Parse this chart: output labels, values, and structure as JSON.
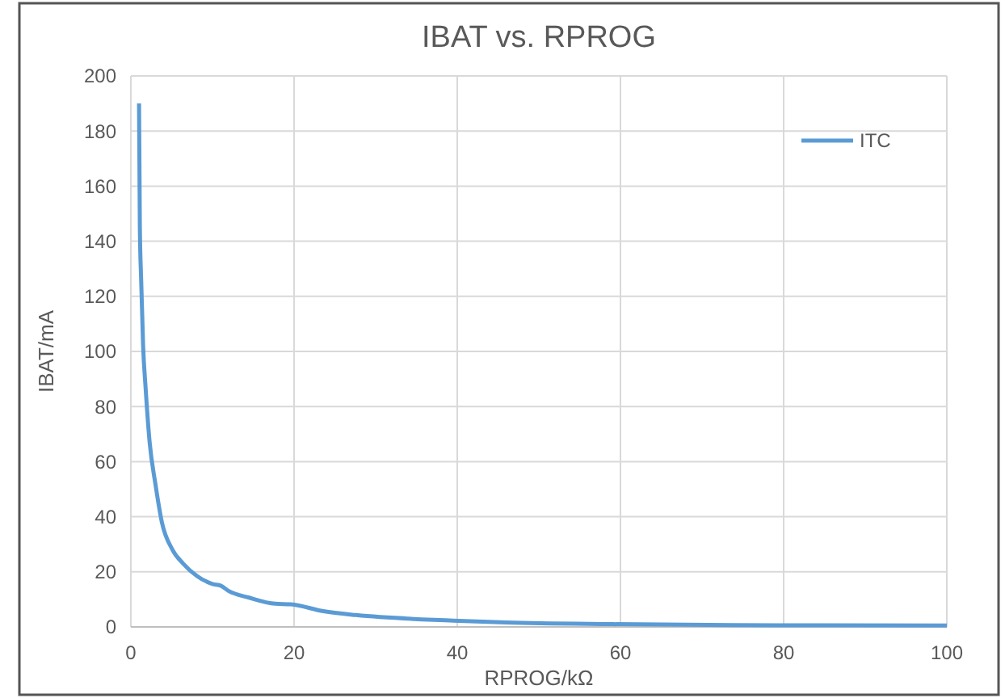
{
  "chart_data": {
    "type": "line",
    "title": "IBAT vs. RPROG",
    "xlabel": "RPROG/kΩ",
    "ylabel": "IBAT/mA",
    "x": [
      1,
      1.1,
      1.26,
      1.5,
      1.8,
      2.3,
      3,
      3.8,
      5.1,
      6.4,
      8.1,
      10,
      11,
      12,
      14.4,
      17.7,
      19.6,
      23.6,
      27.6,
      39.5,
      46,
      59,
      79,
      100
    ],
    "series": [
      {
        "name": "ITC",
        "color": "#5b9bd5",
        "values": [
          190,
          145,
          126,
          102,
          87,
          67,
          52,
          38,
          28,
          23,
          18.5,
          15.6,
          15,
          13,
          10.7,
          8.4,
          8.2,
          5.7,
          4.3,
          2.3,
          1.6,
          1.0,
          0.6,
          0.5
        ]
      }
    ],
    "xlim": [
      0,
      100
    ],
    "xticks": [
      0,
      20,
      40,
      60,
      80,
      100
    ],
    "ylim": [
      0,
      200
    ],
    "yticks": [
      0,
      20,
      40,
      60,
      80,
      100,
      120,
      140,
      160,
      180,
      200
    ],
    "grid": true,
    "legend": "top right",
    "marker": "none",
    "line_style": "solid"
  }
}
